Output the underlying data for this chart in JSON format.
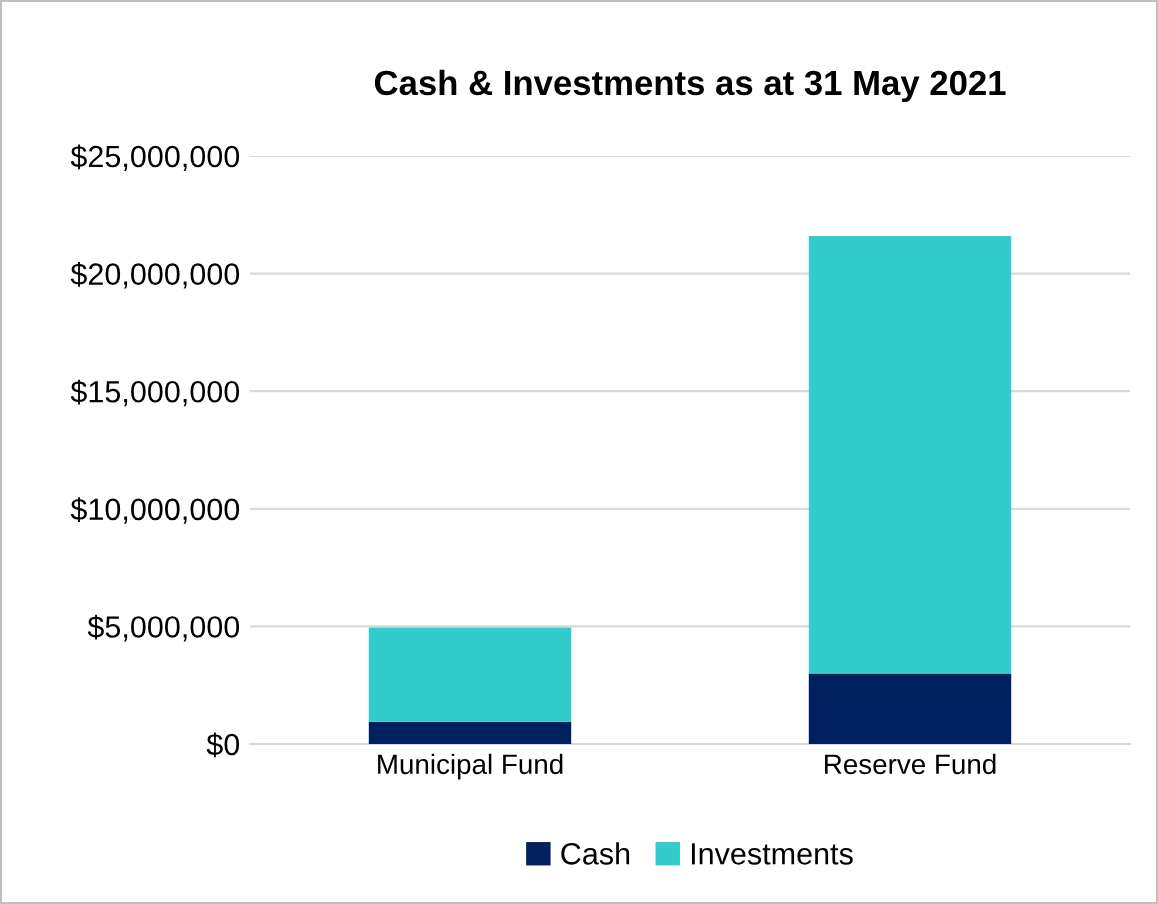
{
  "chart_data": {
    "type": "bar",
    "title": "Cash & Investments as at 31 May 2021",
    "categories": [
      "Municipal Fund",
      "Reserve Fund"
    ],
    "stacked": true,
    "series": [
      {
        "name": "Cash",
        "color": "#002060",
        "values": [
          950000,
          3000000
        ]
      },
      {
        "name": "Investments",
        "color": "#33cccc",
        "values": [
          4000000,
          18600000
        ]
      }
    ],
    "ylim": [
      0,
      25000000
    ],
    "yticks": [
      {
        "value": 0,
        "label": "$0"
      },
      {
        "value": 5000000,
        "label": "$5,000,000"
      },
      {
        "value": 10000000,
        "label": "$10,000,000"
      },
      {
        "value": 15000000,
        "label": "$15,000,000"
      },
      {
        "value": 20000000,
        "label": "$20,000,000"
      },
      {
        "value": 25000000,
        "label": "$25,000,000"
      }
    ],
    "grid": "y",
    "legend": "bottom"
  }
}
